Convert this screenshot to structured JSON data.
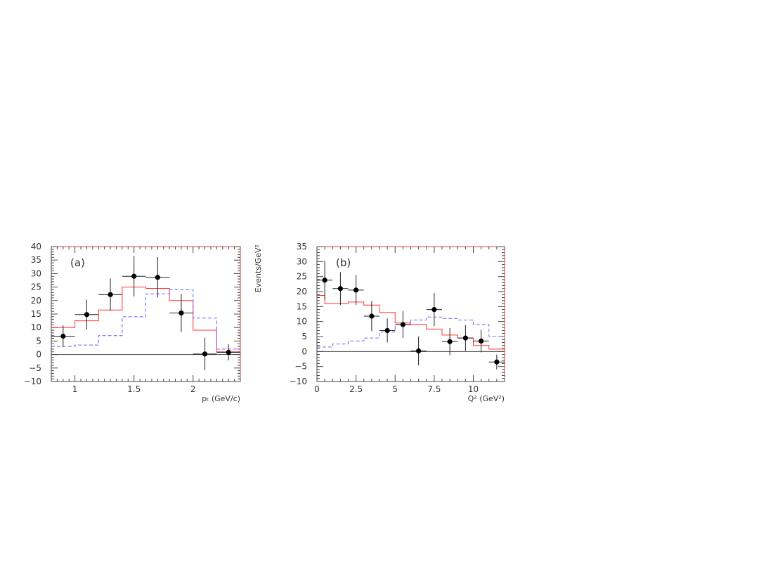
{
  "chart_data": [
    {
      "type": "scatter",
      "panel_label": "(a)",
      "xlabel": "pₜ (GeV/c)",
      "ylabel": "",
      "xlim": [
        0.8,
        2.4
      ],
      "ylim": [
        -10,
        40
      ],
      "x_ticks": [
        1,
        1.5,
        2
      ],
      "x_tick_labels": [
        "1",
        "1.5",
        "2"
      ],
      "y_ticks": [
        -10,
        -5,
        0,
        5,
        10,
        15,
        20,
        25,
        30,
        35,
        40
      ],
      "y_tick_labels": [
        "−10",
        "−5",
        "0",
        "5",
        "10",
        "15",
        "20",
        "25",
        "30",
        "35",
        "40"
      ],
      "zero_line": true,
      "grid": false,
      "data": {
        "x": [
          0.9,
          1.1,
          1.3,
          1.5,
          1.7,
          1.9,
          2.1,
          2.3
        ],
        "y": [
          6.8,
          14.8,
          22.2,
          29.0,
          28.6,
          15.4,
          0.2,
          0.8
        ],
        "xerr": [
          0.1,
          0.1,
          0.1,
          0.1,
          0.1,
          0.1,
          0.1,
          0.1
        ],
        "yerr": [
          4.0,
          5.5,
          6.0,
          7.5,
          7.5,
          7.0,
          6.0,
          3.0
        ]
      },
      "histograms": [
        {
          "style": "solid",
          "color": "#ff3333",
          "edges": [
            0.8,
            1.0,
            1.2,
            1.4,
            1.6,
            1.8,
            2.0,
            2.2,
            2.4
          ],
          "values": [
            10.0,
            12.5,
            16.5,
            25.0,
            24.5,
            20.0,
            9.0,
            1.0
          ]
        },
        {
          "style": "dashed",
          "color": "#6666ff",
          "edges": [
            0.8,
            1.0,
            1.2,
            1.4,
            1.6,
            1.8,
            2.0,
            2.2,
            2.4
          ],
          "values": [
            3.0,
            3.5,
            7.0,
            14.0,
            22.5,
            24.0,
            13.5,
            2.0
          ]
        }
      ]
    },
    {
      "type": "scatter",
      "panel_label": "(b)",
      "xlabel": "Q² (GeV²)",
      "ylabel": "Events/GeV²",
      "xlim": [
        0,
        12
      ],
      "ylim": [
        -10,
        35
      ],
      "x_ticks": [
        0,
        2.5,
        5,
        7.5,
        10
      ],
      "x_tick_labels": [
        "0",
        "2.5",
        "5",
        "7.5",
        "10"
      ],
      "y_ticks": [
        -10,
        -5,
        0,
        5,
        10,
        15,
        20,
        25,
        30,
        35
      ],
      "y_tick_labels": [
        "−10",
        "−5",
        "0",
        "5",
        "10",
        "15",
        "20",
        "25",
        "30",
        "35"
      ],
      "zero_line": true,
      "grid": false,
      "data": {
        "x": [
          0.5,
          1.5,
          2.5,
          3.5,
          4.5,
          5.5,
          6.5,
          7.5,
          8.5,
          9.5,
          10.5,
          11.5
        ],
        "y": [
          23.8,
          21.0,
          20.5,
          11.8,
          7.0,
          9.0,
          0.2,
          14.0,
          3.3,
          4.5,
          3.5,
          -3.5
        ],
        "xerr": [
          0.5,
          0.5,
          0.5,
          0.5,
          0.5,
          0.5,
          0.5,
          0.5,
          0.5,
          0.5,
          0.5,
          0.5
        ],
        "yerr": [
          6.5,
          5.5,
          5.0,
          5.0,
          4.0,
          4.5,
          4.8,
          5.5,
          4.5,
          4.3,
          3.8,
          2.5
        ]
      },
      "histograms": [
        {
          "style": "solid",
          "color": "#ff3333",
          "edges": [
            0,
            0.5,
            1,
            2,
            3,
            4,
            5,
            6,
            7,
            8,
            9,
            10,
            11,
            12
          ],
          "values": [
            18.7,
            16.0,
            16.0,
            16.5,
            15.5,
            13.0,
            9.5,
            9.0,
            7.5,
            5.5,
            4.5,
            2.0,
            0.8
          ]
        },
        {
          "style": "dashed",
          "color": "#6666ff",
          "edges": [
            0,
            1,
            2,
            3,
            4,
            5,
            6,
            7,
            8,
            9,
            10,
            11,
            12
          ],
          "values": [
            1.5,
            2.5,
            3.5,
            4.5,
            6.5,
            9.0,
            10.5,
            11.5,
            11.0,
            10.5,
            9.0,
            5.0
          ]
        }
      ]
    }
  ]
}
